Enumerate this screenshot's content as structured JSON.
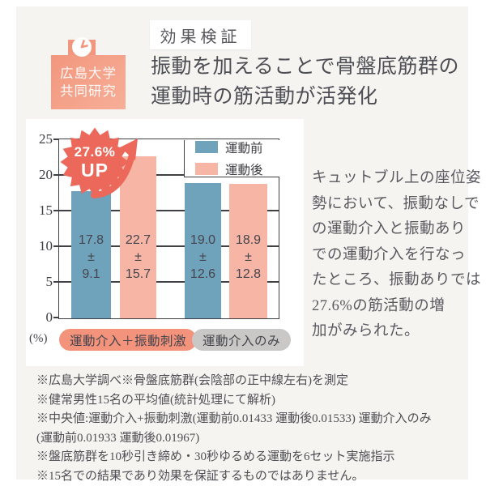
{
  "page": {
    "background": "#F5F4F1"
  },
  "header": {
    "tag_label": "効果検証",
    "badge": {
      "line_text": "広島大学\n共同研究",
      "icon": "clock-icon",
      "color": "#F2977E"
    },
    "title": "振動を加えることで骨盤底筋群の\n運動時の筋活動が活発化"
  },
  "chart_data": {
    "type": "bar",
    "unit_label": "(%)",
    "ylim": [
      0,
      25
    ],
    "yticks": [
      25,
      20,
      15,
      10,
      5,
      0
    ],
    "grid": true,
    "legend_position": "top-right",
    "plus_minus": "±",
    "series": [
      {
        "name": "運動前",
        "color": "#6FA2BB"
      },
      {
        "name": "運動後",
        "color": "#F7B5A5"
      }
    ],
    "groups": [
      {
        "label": "運動介入＋振動刺激",
        "pill_color": "#F3937C",
        "bars": [
          {
            "series": "運動前",
            "value": 17.8,
            "value_label": "17.8",
            "sd_label": "9.1"
          },
          {
            "series": "運動後",
            "value": 22.7,
            "value_label": "22.7",
            "sd_label": "15.7"
          }
        ]
      },
      {
        "label": "運動介入のみ",
        "pill_color": "#C9C8C6",
        "bars": [
          {
            "series": "運動前",
            "value": 19.0,
            "value_label": "19.0",
            "sd_label": "12.6"
          },
          {
            "series": "運動後",
            "value": 18.9,
            "value_label": "18.9",
            "sd_label": "12.8"
          }
        ]
      }
    ],
    "annotation": {
      "line1": "27.6%",
      "line2": "UP",
      "color": "#EB685A"
    }
  },
  "aside": {
    "text": "キュットブル上の座位姿\n勢において、振動なしで\nの運動介入と振動あり\nでの運動介入を行なっ\nたところ、振動ありでは\n27.6%の筋活動の増\n加がみられた。"
  },
  "footnotes": {
    "text": "※広島大学調べ※骨盤底筋群(会陰部の正中線左右)を測定\n※健常男性15名の平均値(統計処理にて解析)\n※中央値:運動介入+振動刺激(運動前0.01433 運動後0.01533)  運動介入のみ\n(運動前0.01933 運動後0.01967)\n※盤底筋群を10秒引き締め・30秒ゆるめる運動を6セット実施指示\n※15名での結果であり効果を保証するものではありません。"
  }
}
